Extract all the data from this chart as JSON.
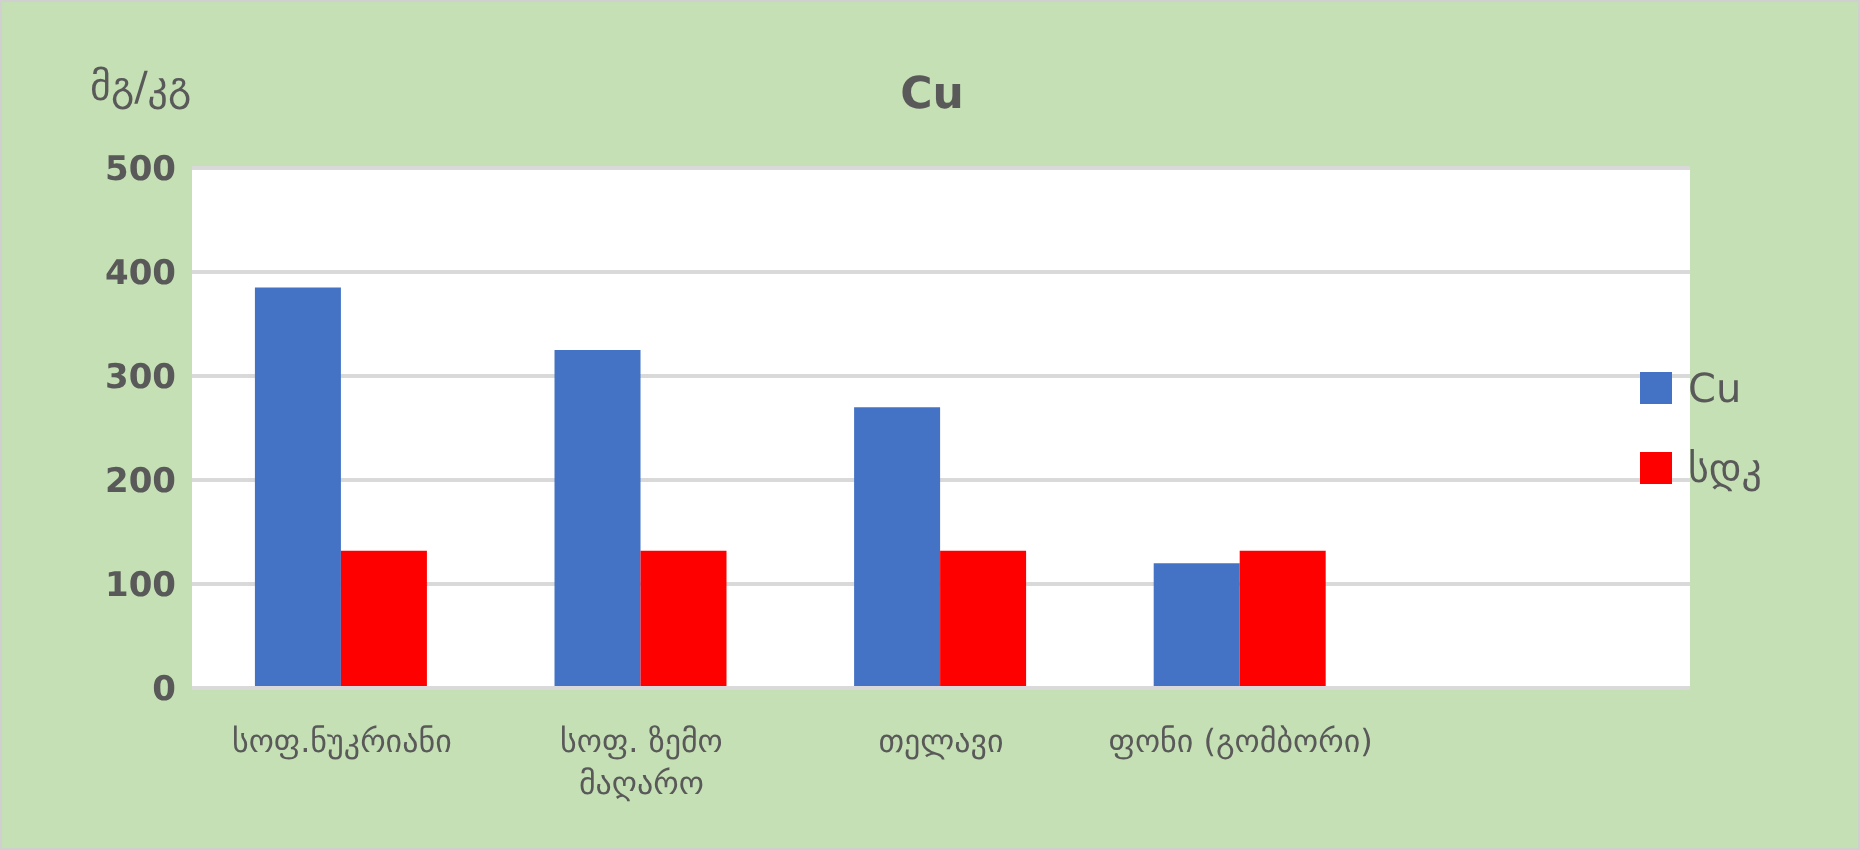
{
  "chart_data": {
    "type": "bar",
    "title": "Cu",
    "ylabel": "მგ/კგ",
    "categories": [
      "სოფ.ნუკრიანი",
      "სოფ. ზემო მაღარო",
      "თელავი",
      "ფონი (გომბორი)",
      null
    ],
    "series": [
      {
        "name": "Cu",
        "color": "#4472c4",
        "values": [
          385,
          325,
          270,
          120,
          null
        ]
      },
      {
        "name": "სდკ",
        "color": "#ff0000",
        "values": [
          132,
          132,
          132,
          132,
          null
        ]
      }
    ],
    "ylim": [
      0,
      500
    ],
    "yticks": [
      0,
      100,
      200,
      300,
      400,
      500
    ],
    "grid": "y",
    "legend": "right"
  }
}
